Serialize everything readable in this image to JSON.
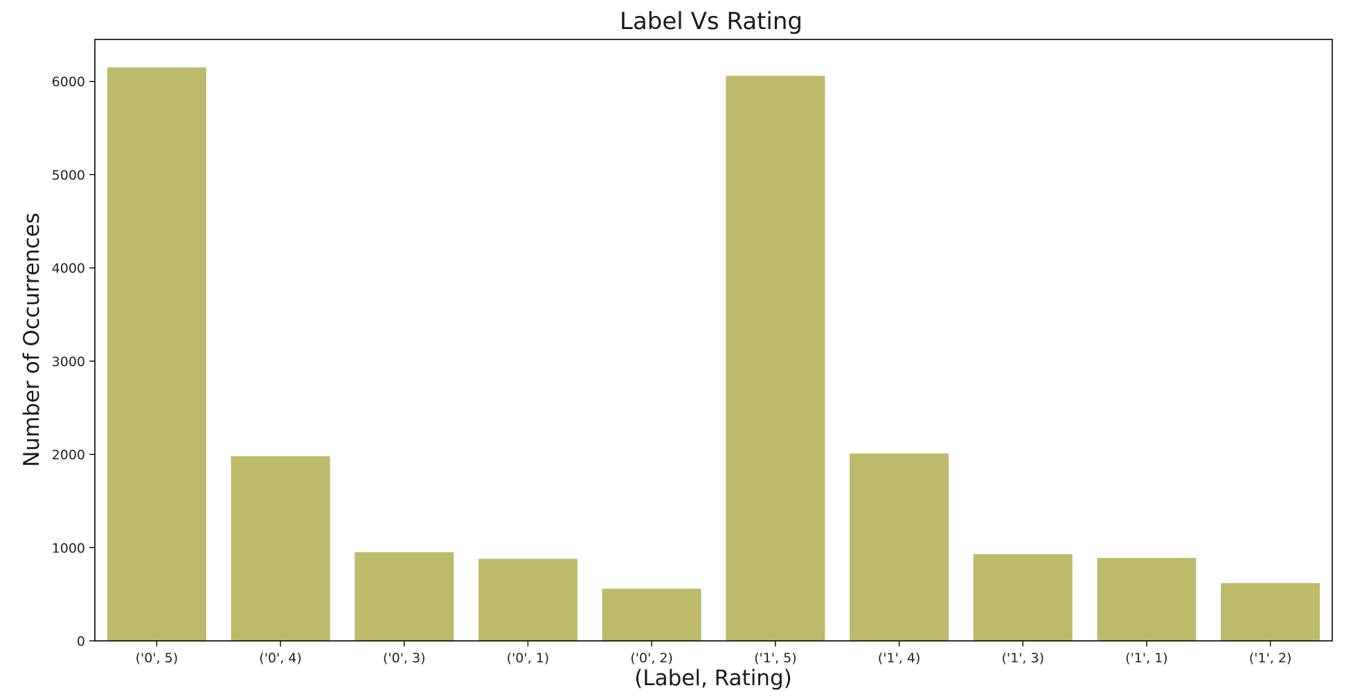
{
  "chart_data": {
    "type": "bar",
    "title": "Label Vs Rating",
    "xlabel": "(Label, Rating)",
    "ylabel": "Number of Occurrences",
    "categories": [
      "('0', 5)",
      "('0', 4)",
      "('0', 3)",
      "('0', 1)",
      "('0', 2)",
      "('1', 5)",
      "('1', 4)",
      "('1', 3)",
      "('1', 1)",
      "('1', 2)"
    ],
    "values": [
      6150,
      1980,
      950,
      880,
      560,
      6060,
      2010,
      930,
      890,
      620
    ],
    "ylim": [
      0,
      6450
    ],
    "yticks": [
      0,
      1000,
      2000,
      3000,
      4000,
      5000,
      6000
    ],
    "bar_color": "#bcba6b",
    "grid": false,
    "legend": false
  }
}
